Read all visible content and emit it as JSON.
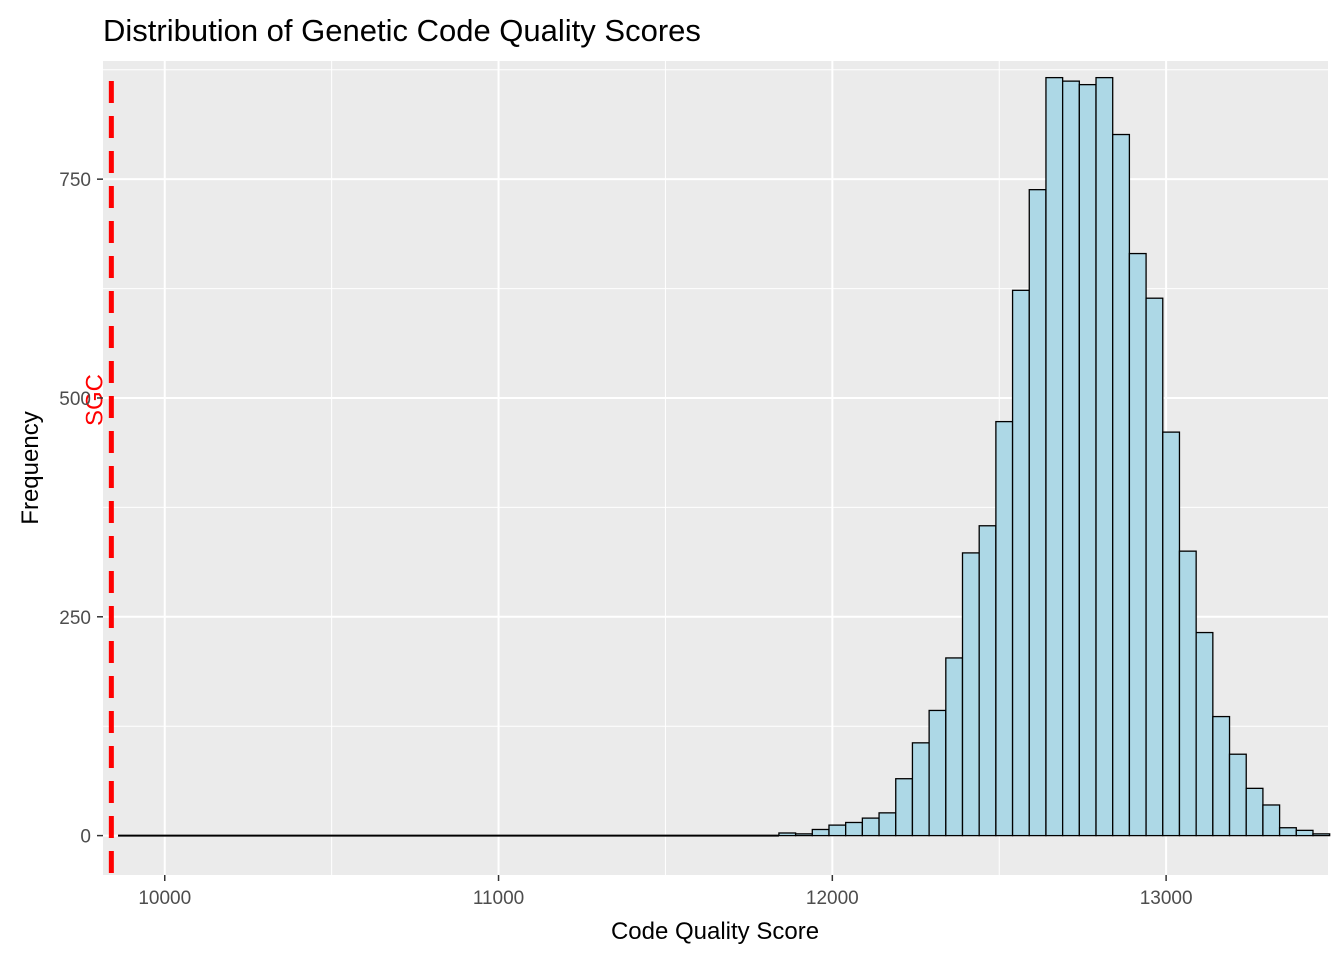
{
  "chart_data": {
    "type": "histogram",
    "title": "Distribution of Genetic Code Quality Scores",
    "xlabel": "Code Quality Score",
    "ylabel": "Frequency",
    "xlim": [
      9815,
      13485
    ],
    "ylim": [
      -45,
      885
    ],
    "x_ticks": [
      10000,
      11000,
      12000,
      13000
    ],
    "x_tick_labels": [
      "10000",
      "11000",
      "12000",
      "13000"
    ],
    "y_ticks": [
      0,
      250,
      500,
      750
    ],
    "y_tick_labels": [
      "0",
      "250",
      "500",
      "750"
    ],
    "bin_width": 50,
    "bins_start": [
      11840,
      11890,
      11940,
      11990,
      12040,
      12090,
      12140,
      12190,
      12240,
      12290,
      12340,
      12390,
      12440,
      12490,
      12540,
      12590,
      12640,
      12690,
      12740,
      12790,
      12840,
      12890,
      12940,
      12990,
      13040,
      13090,
      13140,
      13190,
      13240,
      13290,
      13340,
      13390,
      13440
    ],
    "values": [
      3,
      2,
      7,
      12,
      15,
      20,
      26,
      65,
      106,
      143,
      203,
      323,
      354,
      473,
      623,
      738,
      866,
      862,
      858,
      866,
      801,
      665,
      614,
      461,
      325,
      232,
      136,
      93,
      54,
      35,
      9,
      6,
      2
    ],
    "baseline_range": [
      9815,
      13485
    ],
    "reference_line": {
      "x": 9840,
      "label": "SGC",
      "color": "#ff0000",
      "style": "dashed"
    },
    "bar_fill": "#add8e6",
    "bar_outline": "#000000",
    "panel_background": "#ebebeb",
    "grid": true,
    "legend": "none"
  }
}
